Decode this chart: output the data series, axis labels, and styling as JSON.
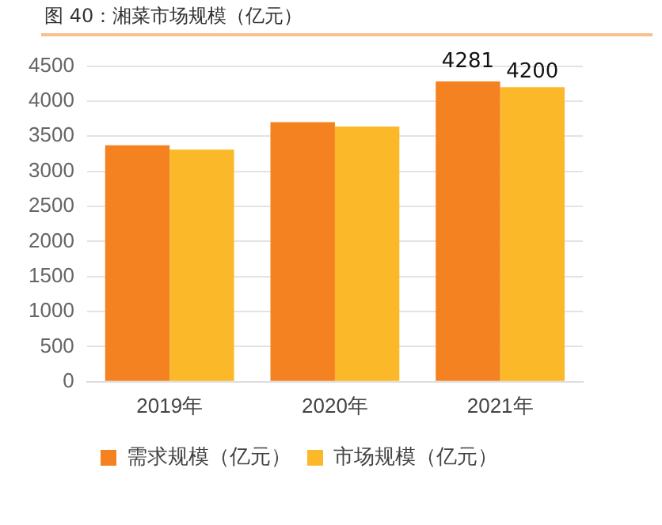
{
  "chart_data": {
    "type": "bar",
    "title": "图 40：湘菜市场规模（亿元）",
    "categories": [
      "2019年",
      "2020年",
      "2021年"
    ],
    "series": [
      {
        "name": "需求规模（亿元）",
        "color": "#f58220",
        "values": [
          3370,
          3700,
          4281
        ],
        "value_labels": [
          null,
          null,
          "4281"
        ]
      },
      {
        "name": "市场规模（亿元）",
        "color": "#fbb829",
        "values": [
          3310,
          3640,
          4200
        ],
        "value_labels": [
          null,
          null,
          "4200"
        ]
      }
    ],
    "ylim": [
      0,
      4500
    ],
    "yticks": [
      0,
      500,
      1000,
      1500,
      2000,
      2500,
      3000,
      3500,
      4000,
      4500
    ],
    "grid": "y",
    "legend": "bottom"
  }
}
